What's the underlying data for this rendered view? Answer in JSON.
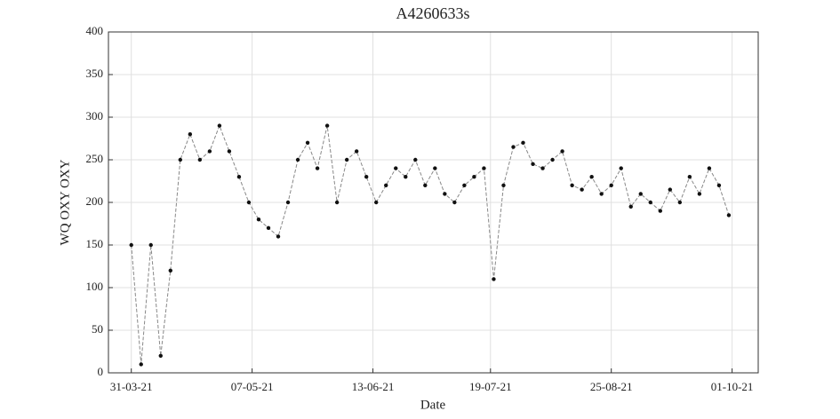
{
  "chart_data": {
    "type": "line",
    "title": "A4260633s",
    "x_label": "Date",
    "y_label": "WQ OXY OXY",
    "x": [
      "2021-03-31",
      "2021-04-03",
      "2021-04-06",
      "2021-04-09",
      "2021-04-12",
      "2021-04-15",
      "2021-04-18",
      "2021-04-21",
      "2021-04-24",
      "2021-04-27",
      "2021-04-30",
      "2021-05-03",
      "2021-05-06",
      "2021-05-09",
      "2021-05-12",
      "2021-05-15",
      "2021-05-18",
      "2021-05-21",
      "2021-05-24",
      "2021-05-27",
      "2021-05-30",
      "2021-06-02",
      "2021-06-05",
      "2021-06-08",
      "2021-06-11",
      "2021-06-14",
      "2021-06-17",
      "2021-06-20",
      "2021-06-23",
      "2021-06-26",
      "2021-06-29",
      "2021-07-02",
      "2021-07-05",
      "2021-07-08",
      "2021-07-11",
      "2021-07-14",
      "2021-07-17",
      "2021-07-20",
      "2021-07-23",
      "2021-07-26",
      "2021-07-29",
      "2021-08-01",
      "2021-08-04",
      "2021-08-07",
      "2021-08-10",
      "2021-08-13",
      "2021-08-16",
      "2021-08-19",
      "2021-08-22",
      "2021-08-25",
      "2021-08-28",
      "2021-08-31",
      "2021-09-03",
      "2021-09-06",
      "2021-09-09",
      "2021-09-12",
      "2021-09-15",
      "2021-09-18",
      "2021-09-21",
      "2021-09-24",
      "2021-09-27",
      "2021-09-30"
    ],
    "series": [
      {
        "name": "WQ OXY OXY",
        "color": "#111111",
        "values": [
          150,
          10,
          150,
          20,
          120,
          250,
          280,
          250,
          260,
          290,
          260,
          230,
          200,
          180,
          170,
          160,
          200,
          250,
          270,
          240,
          290,
          200,
          250,
          260,
          230,
          200,
          220,
          240,
          230,
          250,
          220,
          240,
          210,
          200,
          220,
          230,
          240,
          110,
          220,
          265,
          270,
          245,
          240,
          250,
          260,
          220,
          215,
          230,
          210,
          220,
          240,
          195,
          210,
          200,
          190,
          215,
          200,
          230,
          210,
          240,
          220,
          185
        ]
      }
    ],
    "xlim": [
      "2021-03-24",
      "2021-10-09"
    ],
    "xticks": [
      {
        "value": "2021-03-31",
        "label": "31-03-21"
      },
      {
        "value": "2021-05-07",
        "label": "07-05-21"
      },
      {
        "value": "2021-06-13",
        "label": "13-06-21"
      },
      {
        "value": "2021-07-19",
        "label": "19-07-21"
      },
      {
        "value": "2021-08-25",
        "label": "25-08-21"
      },
      {
        "value": "2021-10-01",
        "label": "01-10-21"
      }
    ],
    "ylim": [
      0,
      400
    ],
    "yticks": [
      0,
      50,
      100,
      150,
      200,
      250,
      300,
      350,
      400
    ],
    "grid": true
  }
}
